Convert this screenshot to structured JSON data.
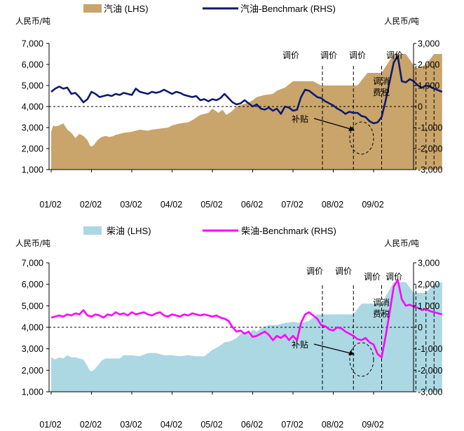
{
  "chart_data": [
    {
      "type": "area+line",
      "unit_left": "人民币/吨",
      "unit_right": "人民币/吨",
      "legend": [
        {
          "name": "汽油 (LHS)",
          "kind": "area",
          "color": "#c9a56b"
        },
        {
          "name": "汽油-Benchmark (RHS)",
          "kind": "line",
          "color": "#0d1a6e"
        }
      ],
      "x_ticks": [
        "01/02",
        "02/02",
        "03/02",
        "04/02",
        "05/02",
        "06/02",
        "07/02",
        "08/02",
        "09/02"
      ],
      "left_axis": {
        "ylim": [
          1000,
          7000
        ],
        "ticks": [
          "1,000",
          "2,000",
          "3,000",
          "4,000",
          "5,000",
          "6,000",
          "7,000"
        ]
      },
      "right_axis": {
        "ylim": [
          -3000,
          3000
        ],
        "ticks": [
          "-3,000",
          "-2,000",
          "-1,000",
          "0",
          "1,000",
          "2,000",
          "3,000"
        ]
      },
      "annotations": [
        "调价",
        "调价",
        "调价",
        "调价",
        "调消费税",
        "补贴"
      ],
      "area_series": {
        "name": "汽油 (LHS)",
        "x": [
          0.0,
          0.05,
          0.1,
          0.2,
          0.3,
          0.4,
          0.5,
          0.6,
          0.7,
          0.8,
          0.9,
          0.96,
          1.0,
          1.05,
          1.15,
          1.25,
          1.35,
          1.45,
          1.55,
          1.6,
          1.8,
          2.0,
          2.2,
          2.4,
          2.5,
          2.7,
          2.9,
          3.0,
          3.2,
          3.4,
          3.5,
          3.7,
          3.9,
          4.0,
          4.15,
          4.25,
          4.35,
          4.5,
          4.6,
          4.75,
          4.9,
          5.0,
          5.1,
          5.3,
          5.5,
          5.6,
          5.8,
          6.0,
          6.15,
          6.3,
          6.5,
          6.7,
          6.9,
          7.0,
          7.3,
          7.6,
          7.85,
          8.0,
          8.2,
          8.5,
          8.8,
          9.05,
          9.3,
          9.5,
          9.7
        ],
        "values": [
          2800,
          3100,
          3050,
          3100,
          3200,
          2900,
          2750,
          2500,
          2700,
          2600,
          2400,
          2150,
          2100,
          2150,
          2400,
          2550,
          2600,
          2550,
          2600,
          2650,
          2750,
          2800,
          2900,
          2850,
          2900,
          2950,
          3000,
          3100,
          3200,
          3250,
          3350,
          3600,
          3700,
          3900,
          3700,
          3850,
          3600,
          3800,
          4000,
          4100,
          4200,
          4300,
          4450,
          4550,
          4600,
          4750,
          4900,
          5200,
          5200,
          5200,
          5200,
          5000,
          5000,
          5000,
          5000,
          5000,
          5600,
          5600,
          5600,
          6500,
          6500,
          5800,
          6000,
          6500,
          6500
        ]
      },
      "line_series": {
        "name": "汽油-Benchmark (RHS)",
        "x": [
          0.0,
          0.1,
          0.2,
          0.3,
          0.4,
          0.5,
          0.6,
          0.7,
          0.8,
          0.9,
          1.0,
          1.1,
          1.2,
          1.3,
          1.4,
          1.5,
          1.6,
          1.7,
          1.8,
          1.9,
          2.0,
          2.1,
          2.2,
          2.3,
          2.4,
          2.5,
          2.6,
          2.7,
          2.8,
          2.9,
          3.0,
          3.1,
          3.2,
          3.3,
          3.4,
          3.5,
          3.6,
          3.7,
          3.8,
          3.9,
          4.0,
          4.1,
          4.2,
          4.3,
          4.4,
          4.5,
          4.6,
          4.7,
          4.8,
          4.9,
          5.0,
          5.1,
          5.2,
          5.3,
          5.4,
          5.5,
          5.6,
          5.7,
          5.8,
          5.9,
          6.0,
          6.1,
          6.2,
          6.3,
          6.4,
          6.5,
          6.6,
          6.7,
          6.8,
          6.9,
          7.0,
          7.1,
          7.2,
          7.3,
          7.4,
          7.5,
          7.6,
          7.7,
          7.8,
          7.9,
          8.0,
          8.1,
          8.2,
          8.3,
          8.4,
          8.5,
          8.6,
          8.7,
          8.8,
          8.9,
          9.0,
          9.1,
          9.2,
          9.3,
          9.4,
          9.5,
          9.7
        ],
        "values": [
          700,
          850,
          950,
          850,
          900,
          600,
          650,
          450,
          200,
          350,
          700,
          600,
          450,
          500,
          550,
          500,
          600,
          550,
          650,
          600,
          550,
          850,
          700,
          650,
          600,
          700,
          650,
          700,
          800,
          700,
          600,
          700,
          650,
          550,
          500,
          450,
          500,
          300,
          350,
          250,
          350,
          300,
          400,
          600,
          400,
          200,
          100,
          150,
          300,
          150,
          0,
          100,
          -100,
          -150,
          -50,
          -200,
          -100,
          -350,
          0,
          -50,
          -200,
          -150,
          450,
          800,
          750,
          600,
          450,
          400,
          250,
          150,
          50,
          -100,
          -200,
          -350,
          -250,
          -300,
          -300,
          -450,
          -500,
          -700,
          -800,
          -750,
          -500,
          300,
          1200,
          2100,
          2400,
          1200,
          1150,
          1300,
          1200,
          1000,
          900,
          1000,
          950,
          850,
          700
        ]
      },
      "markers": {
        "dashed_verticals_x": [
          6.73,
          7.5,
          8.2,
          9.05,
          9.3,
          9.5
        ],
        "subsidy_ellipse_x": 8.25
      }
    },
    {
      "type": "area+line",
      "unit_left": "人民币/吨",
      "unit_right": "人民币/吨",
      "legend": [
        {
          "name": "柴油 (LHS)",
          "kind": "area",
          "color": "#acd8e4"
        },
        {
          "name": "柴油-Benchmark (RHS)",
          "kind": "line",
          "color": "#ff00ff"
        }
      ],
      "x_ticks": [
        "01/02",
        "02/02",
        "03/02",
        "04/02",
        "05/02",
        "06/02",
        "07/02",
        "08/02",
        "09/02"
      ],
      "left_axis": {
        "ylim": [
          1000,
          7000
        ],
        "ticks": [
          "1,000",
          "2,000",
          "3,000",
          "4,000",
          "5,000",
          "6,000",
          "7,000"
        ]
      },
      "right_axis": {
        "ylim": [
          -3000,
          3000
        ],
        "ticks": [
          "-3,000",
          "-2,000",
          "-1,000",
          "0",
          "1,000",
          "2,000",
          "3,000"
        ]
      },
      "annotations": [
        "调价",
        "调价",
        "调价",
        "调价",
        "调消费税",
        "补贴"
      ],
      "area_series": {
        "name": "柴油 (LHS)",
        "x": [
          0.0,
          0.1,
          0.2,
          0.3,
          0.4,
          0.5,
          0.6,
          0.7,
          0.8,
          0.9,
          0.95,
          1.0,
          1.05,
          1.15,
          1.25,
          1.35,
          1.5,
          1.7,
          1.8,
          2.0,
          2.2,
          2.4,
          2.6,
          2.8,
          3.0,
          3.2,
          3.4,
          3.6,
          3.8,
          4.0,
          4.15,
          4.3,
          4.45,
          4.6,
          4.7,
          4.8,
          4.9,
          5.0,
          5.1,
          5.2,
          5.4,
          5.6,
          5.8,
          6.0,
          6.2,
          6.4,
          6.6,
          6.8,
          7.0,
          7.2,
          7.5,
          7.7,
          8.0,
          8.2,
          8.5,
          8.8,
          9.0,
          9.3,
          9.5,
          9.7
        ],
        "values": [
          2600,
          2500,
          2600,
          2550,
          2700,
          2600,
          2600,
          2550,
          2500,
          2200,
          2000,
          1950,
          2000,
          2200,
          2450,
          2550,
          2550,
          2550,
          2700,
          2700,
          2650,
          2800,
          2800,
          2700,
          2700,
          2650,
          2700,
          2650,
          2650,
          2950,
          3100,
          3300,
          3350,
          3500,
          3700,
          3800,
          3650,
          3900,
          3800,
          3950,
          4100,
          4100,
          4200,
          4250,
          4200,
          4300,
          4600,
          4600,
          4600,
          4600,
          4600,
          5100,
          5100,
          5100,
          6100,
          6100,
          5600,
          5600,
          6000,
          6100
        ]
      },
      "line_series": {
        "name": "柴油-Benchmark (RHS)",
        "x": [
          0.0,
          0.1,
          0.2,
          0.3,
          0.4,
          0.5,
          0.6,
          0.7,
          0.8,
          0.9,
          1.0,
          1.1,
          1.2,
          1.3,
          1.4,
          1.5,
          1.6,
          1.7,
          1.8,
          1.9,
          2.0,
          2.1,
          2.2,
          2.3,
          2.4,
          2.5,
          2.6,
          2.7,
          2.8,
          2.9,
          3.0,
          3.1,
          3.2,
          3.3,
          3.4,
          3.5,
          3.6,
          3.7,
          3.8,
          3.9,
          4.0,
          4.1,
          4.2,
          4.3,
          4.4,
          4.5,
          4.6,
          4.7,
          4.8,
          4.9,
          5.0,
          5.1,
          5.2,
          5.3,
          5.4,
          5.5,
          5.6,
          5.7,
          5.8,
          5.9,
          6.0,
          6.1,
          6.2,
          6.3,
          6.4,
          6.5,
          6.6,
          6.7,
          6.8,
          6.9,
          7.0,
          7.1,
          7.2,
          7.3,
          7.4,
          7.5,
          7.6,
          7.7,
          7.8,
          7.9,
          8.0,
          8.1,
          8.2,
          8.3,
          8.4,
          8.5,
          8.6,
          8.7,
          8.8,
          8.9,
          9.0,
          9.1,
          9.2,
          9.3,
          9.4,
          9.5,
          9.7
        ],
        "values": [
          450,
          500,
          550,
          500,
          600,
          550,
          650,
          600,
          800,
          550,
          500,
          600,
          550,
          450,
          600,
          550,
          700,
          600,
          650,
          550,
          700,
          600,
          650,
          700,
          600,
          550,
          650,
          700,
          550,
          500,
          600,
          550,
          500,
          600,
          550,
          650,
          600,
          550,
          600,
          550,
          500,
          550,
          450,
          400,
          300,
          0,
          -200,
          -150,
          -300,
          -200,
          -450,
          -400,
          -300,
          -200,
          -350,
          -600,
          -400,
          -500,
          -350,
          -600,
          -400,
          -600,
          200,
          600,
          700,
          550,
          400,
          100,
          50,
          -100,
          -150,
          0,
          -50,
          -200,
          -300,
          -400,
          -550,
          -600,
          -500,
          -700,
          -800,
          -1250,
          -1400,
          -400,
          700,
          1900,
          2200,
          1300,
          1000,
          1050,
          950,
          900,
          800,
          850,
          750,
          700,
          600
        ]
      },
      "markers": {
        "dashed_verticals_x": [
          6.73,
          7.5,
          8.2,
          9.05,
          9.3,
          9.5
        ],
        "subsidy_ellipse_x": 8.25
      }
    }
  ]
}
